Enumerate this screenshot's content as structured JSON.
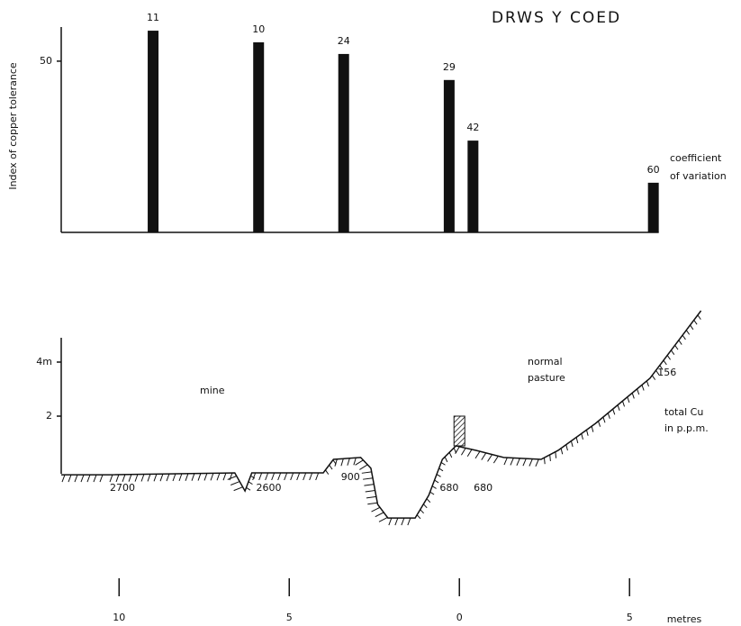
{
  "chart_data": [
    {
      "type": "bar",
      "title": "DRWS Y COED",
      "ylabel": "Index of copper tolerance",
      "x": [
        -9.0,
        -5.9,
        -3.4,
        -0.3,
        0.4,
        5.7
      ],
      "values": [
        58.9,
        55.5,
        52.1,
        44.5,
        26.8,
        14.5
      ],
      "cv_label": [
        "coefficient",
        "of variation"
      ],
      "cv": [
        11,
        10,
        24,
        29,
        42,
        60
      ],
      "color": "#111111",
      "xlim": [
        -11.7,
        7.27
      ],
      "ylim": [
        0,
        62.6
      ],
      "yticks": [
        50
      ]
    },
    {
      "type": "line",
      "x": [
        -11.7,
        -10.3,
        -6.6,
        -6.3,
        -6.1,
        -4.0,
        -3.7,
        -2.9,
        -2.6,
        -2.4,
        -2.1,
        -1.3,
        -0.9,
        -0.5,
        -0.1,
        0.5,
        1.3,
        2.4,
        2.9,
        4.0,
        5.6,
        7.1
      ],
      "values": [
        -0.17,
        -0.17,
        -0.1,
        -0.77,
        -0.1,
        -0.1,
        0.4,
        0.47,
        0.07,
        -1.27,
        -1.77,
        -1.77,
        -0.93,
        0.4,
        0.9,
        0.73,
        0.47,
        0.4,
        0.73,
        1.73,
        3.4,
        5.9
      ],
      "color": "#111111",
      "xlim": [
        -11.7,
        7.27
      ],
      "ylim": [
        -2.5,
        4.9
      ],
      "yticks": [
        2,
        {
          "value": 4,
          "label": "4m"
        }
      ],
      "xticks": [
        {
          "value": -10,
          "label": "10"
        },
        {
          "value": -5,
          "label": "5"
        },
        0,
        5
      ],
      "xlabel": "metres",
      "regions": [
        [
          "mine"
        ],
        [
          "normal",
          "pasture"
        ]
      ],
      "cu_label": [
        "total Cu",
        "in p.p.m."
      ],
      "cu": [
        2700,
        2600,
        900,
        680,
        680,
        156
      ],
      "cu_x": [
        -9.9,
        -5.6,
        -3.2,
        -0.3,
        0.7,
        6.1
      ]
    }
  ]
}
